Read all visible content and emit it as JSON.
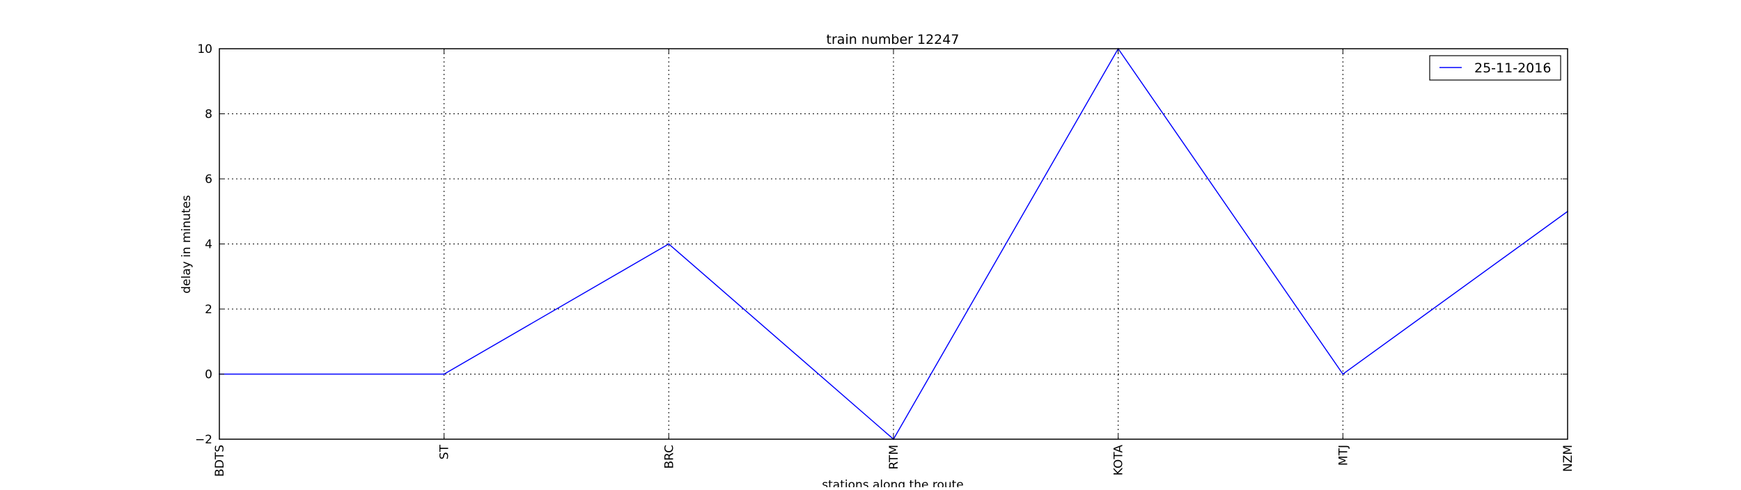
{
  "chart_data": {
    "type": "line",
    "title": "train number 12247",
    "xlabel": "stations along the route",
    "ylabel": "delay in minutes",
    "categories": [
      "BDTS",
      "ST",
      "BRC",
      "RTM",
      "KOTA",
      "MTJ",
      "NZM"
    ],
    "series": [
      {
        "name": "25-11-2016",
        "values": [
          0,
          0,
          4,
          -2,
          10,
          0,
          5
        ],
        "color": "#0000ff"
      }
    ],
    "ylim": [
      -2,
      10
    ],
    "yticks": [
      -2,
      0,
      2,
      4,
      6,
      8,
      10
    ],
    "ytick_labels": [
      "−2",
      "0",
      "2",
      "4",
      "6",
      "8",
      "10"
    ],
    "grid": true,
    "legend_position": "top-right"
  }
}
